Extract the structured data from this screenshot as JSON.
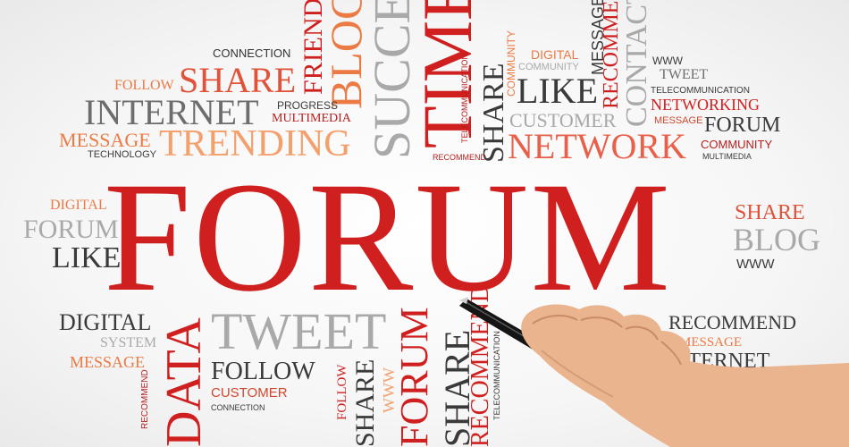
{
  "hero": "FORUM",
  "words": {
    "connection_top": "CONNECTION",
    "friend": "FRIEND",
    "blog_v": "BLOG",
    "success_v": "SUCCESS",
    "time_v": "TIME",
    "follow_top": "FOLLOW",
    "share_top": "SHARE",
    "progress": "PROGRESS",
    "multimedia_l": "MULTIMEDIA",
    "internet": "INTERNET",
    "message_l": "MESSAGE",
    "trending": "TRENDING",
    "technology": "TECHNOLOGY",
    "community_v": "COMMUNITY",
    "telecom_v": "TELECOMMUNICATION",
    "recommend_small": "RECOMMEND",
    "share_v_mid": "SHARE",
    "digital_top": "DIGITAL",
    "community_top": "COMMUNITY",
    "like_top": "LIKE",
    "customer_top": "CUSTOMER",
    "network": "NETWORK",
    "message_v": "MESSAGE",
    "recommend_v": "RECOMMEND",
    "contact_v": "CONTACT",
    "www_top": "WWW",
    "tweet_top": "TWEET",
    "telecommunication_r": "TELECOMMUNICATION",
    "networking": "NETWORKING",
    "message_r": "MESSAGE",
    "forum_r": "FORUM",
    "community_r": "COMMUNITY",
    "multimedia_r": "MULTIMEDIA",
    "digital_l": "DIGITAL",
    "forum_l": "FORUM",
    "like_l": "LIKE",
    "share_r": "SHARE",
    "blog_r": "BLOG",
    "www_r": "WWW",
    "digital_bl": "DIGITAL",
    "system": "SYSTEM",
    "message_bl": "MESSAGE",
    "recommend_bl_v": "RECOMMEND",
    "data_v": "DATA",
    "tweet_b": "TWEET",
    "follow_b": "FOLLOW",
    "customer_b": "CUSTOMER",
    "connection_b": "CONNECTION",
    "follow_v": "FOLLOW",
    "share_bv1": "SHARE",
    "www_v": "WWW",
    "forum_bv": "FORUM",
    "share_bv2": "SHARE",
    "recommend_bv": "RECOMMEND",
    "telecom_bv": "TELECOMMUNICATION",
    "recommend_br": "RECOMMEND",
    "message_br": "MESSAGE",
    "internet_br": "INTERNET"
  }
}
